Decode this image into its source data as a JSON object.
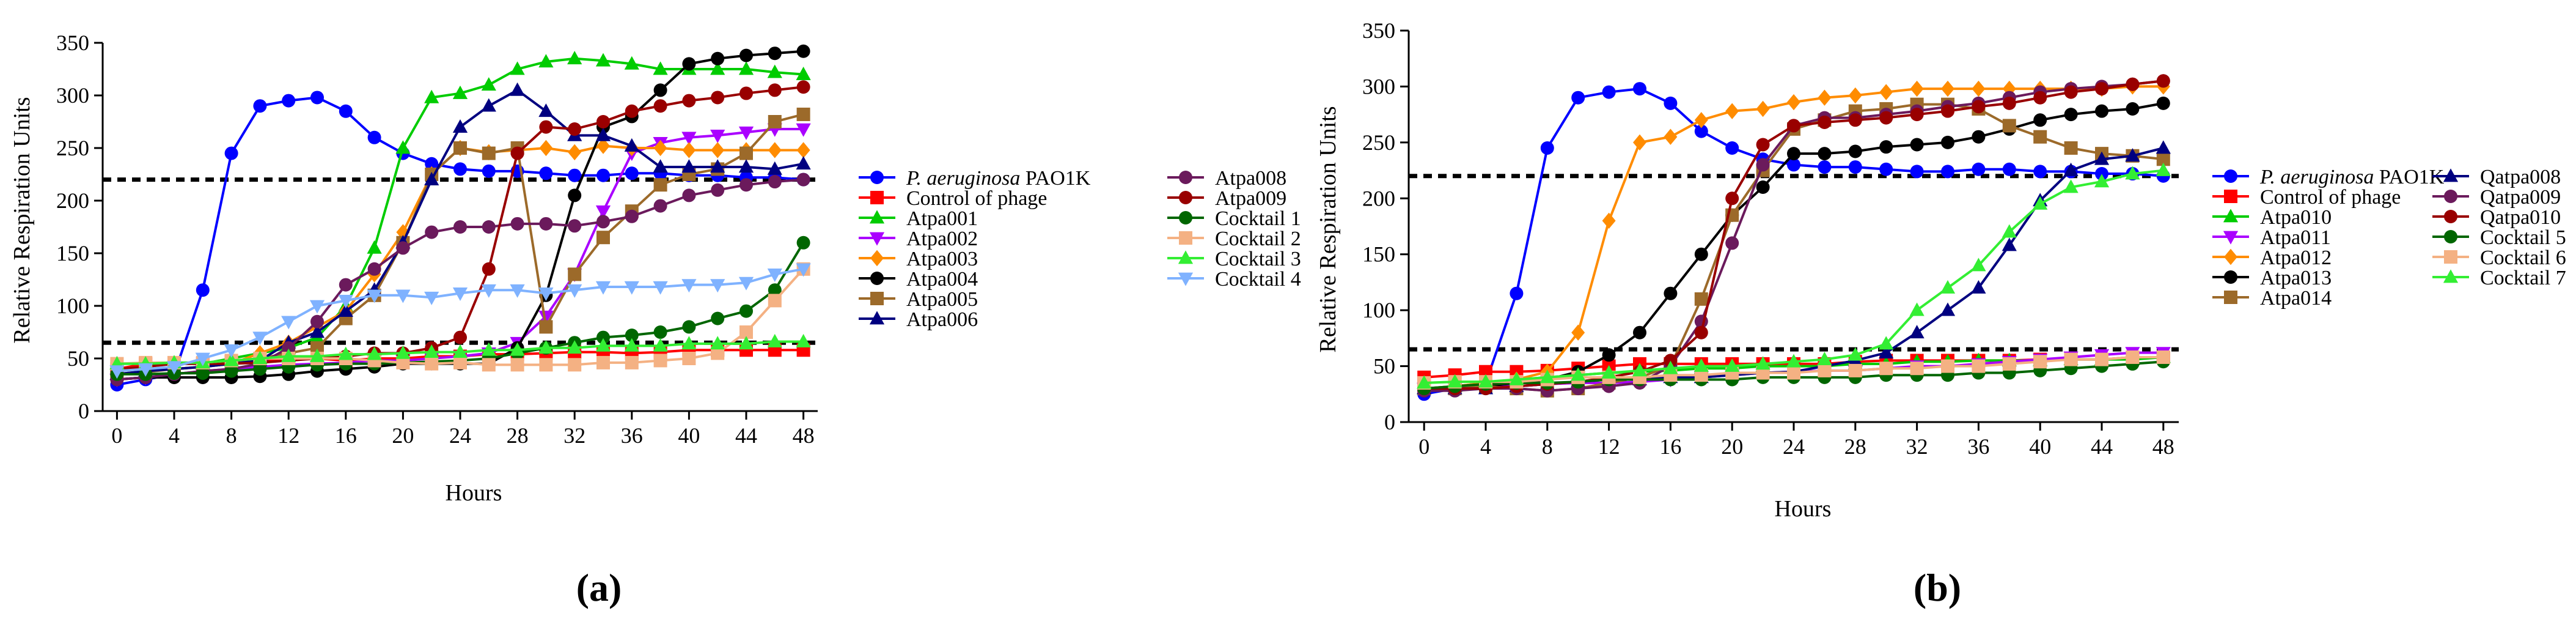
{
  "panels": [
    {
      "label": "(a)"
    },
    {
      "label": "(b)"
    }
  ],
  "chart_data": [
    {
      "type": "line",
      "title": "",
      "xlabel": "Hours",
      "ylabel": "Relative Respiration Units",
      "xlim": [
        -1,
        49
      ],
      "ylim": [
        0,
        350
      ],
      "xticks": [
        0,
        4,
        8,
        12,
        16,
        20,
        24,
        28,
        32,
        36,
        40,
        44,
        48
      ],
      "yticks": [
        0,
        50,
        100,
        150,
        200,
        250,
        300,
        350
      ],
      "reference_lines": [
        220,
        65
      ],
      "x": [
        0,
        2,
        4,
        6,
        8,
        10,
        12,
        14,
        16,
        18,
        20,
        22,
        24,
        26,
        28,
        30,
        32,
        34,
        36,
        38,
        40,
        42,
        44,
        46,
        48
      ],
      "series": [
        {
          "name": "P. aeruginosa PAO1K",
          "name_italic": "P. aeruginosa",
          "name_rest": " PAO1K",
          "color": "#0000ff",
          "marker": "circle",
          "values": [
            25,
            30,
            35,
            115,
            245,
            290,
            295,
            298,
            285,
            260,
            245,
            235,
            230,
            228,
            228,
            226,
            224,
            224,
            226,
            226,
            224,
            224,
            222,
            222,
            220
          ]
        },
        {
          "name": "Control of phage",
          "color": "#ff0000",
          "marker": "square",
          "values": [
            40,
            45,
            45,
            45,
            47,
            48,
            50,
            50,
            48,
            50,
            50,
            52,
            52,
            54,
            54,
            55,
            56,
            56,
            55,
            56,
            58,
            58,
            58,
            58,
            58
          ]
        },
        {
          "name": "Atpa001",
          "color": "#00cc00",
          "marker": "triangle",
          "values": [
            45,
            45,
            45,
            45,
            50,
            55,
            60,
            70,
            100,
            155,
            250,
            298,
            302,
            310,
            325,
            332,
            335,
            333,
            330,
            325,
            325,
            325,
            325,
            322,
            320
          ]
        },
        {
          "name": "Atpa002",
          "color": "#aa00ff",
          "marker": "triangle-down",
          "values": [
            30,
            32,
            35,
            38,
            40,
            42,
            44,
            45,
            46,
            48,
            48,
            50,
            52,
            55,
            65,
            90,
            130,
            190,
            245,
            255,
            260,
            262,
            265,
            268,
            268
          ]
        },
        {
          "name": "Atpa003",
          "color": "#ff8c00",
          "marker": "diamond",
          "values": [
            35,
            38,
            40,
            42,
            45,
            55,
            65,
            80,
            95,
            130,
            170,
            225,
            250,
            246,
            248,
            250,
            246,
            252,
            250,
            250,
            248,
            248,
            248,
            248,
            248
          ]
        },
        {
          "name": "Atpa004",
          "color": "#000000",
          "marker": "circle",
          "values": [
            30,
            32,
            32,
            32,
            32,
            33,
            35,
            38,
            40,
            42,
            45,
            45,
            45,
            45,
            60,
            110,
            205,
            270,
            280,
            305,
            330,
            335,
            338,
            340,
            342
          ]
        },
        {
          "name": "Atpa005",
          "color": "#9c6a2a",
          "marker": "square",
          "values": [
            35,
            37,
            40,
            42,
            45,
            50,
            55,
            60,
            88,
            110,
            160,
            225,
            250,
            245,
            250,
            80,
            130,
            165,
            190,
            215,
            225,
            230,
            245,
            275,
            282
          ]
        },
        {
          "name": "Atpa006",
          "color": "#000080",
          "marker": "triangle",
          "values": [
            35,
            38,
            40,
            42,
            45,
            48,
            65,
            75,
            95,
            115,
            160,
            220,
            270,
            290,
            305,
            285,
            262,
            262,
            252,
            232,
            232,
            232,
            232,
            230,
            235
          ]
        },
        {
          "name": "Atpa008",
          "color": "#6b1a5c",
          "marker": "circle",
          "values": [
            30,
            32,
            35,
            38,
            40,
            45,
            60,
            85,
            120,
            135,
            155,
            170,
            175,
            175,
            178,
            178,
            176,
            180,
            185,
            195,
            205,
            210,
            215,
            218,
            220
          ]
        },
        {
          "name": "Atpa009",
          "color": "#990000",
          "marker": "circle",
          "values": [
            40,
            42,
            45,
            45,
            45,
            46,
            48,
            50,
            52,
            55,
            55,
            60,
            70,
            135,
            245,
            270,
            268,
            275,
            285,
            290,
            295,
            298,
            302,
            305,
            308
          ]
        },
        {
          "name": "Cocktail 1",
          "color": "#006600",
          "marker": "circle",
          "values": [
            35,
            35,
            36,
            36,
            38,
            40,
            42,
            44,
            45,
            45,
            46,
            47,
            48,
            50,
            55,
            60,
            65,
            70,
            72,
            75,
            80,
            88,
            95,
            115,
            160
          ]
        },
        {
          "name": "Cocktail 2",
          "color": "#f4b183",
          "marker": "square",
          "values": [
            45,
            46,
            46,
            46,
            48,
            50,
            50,
            50,
            50,
            48,
            46,
            45,
            46,
            44,
            44,
            44,
            44,
            46,
            46,
            48,
            50,
            55,
            75,
            105,
            135
          ]
        },
        {
          "name": "Cocktail 3",
          "color": "#33ee33",
          "marker": "triangle",
          "values": [
            45,
            45,
            46,
            46,
            48,
            50,
            52,
            52,
            54,
            54,
            55,
            56,
            56,
            58,
            58,
            60,
            60,
            62,
            62,
            62,
            64,
            64,
            64,
            66,
            66
          ]
        },
        {
          "name": "Cocktail 4",
          "color": "#7fb2ff",
          "marker": "triangle-down",
          "values": [
            38,
            40,
            42,
            50,
            58,
            70,
            85,
            100,
            105,
            110,
            110,
            108,
            112,
            115,
            115,
            112,
            115,
            118,
            118,
            118,
            120,
            120,
            122,
            130,
            135
          ]
        }
      ]
    },
    {
      "type": "line",
      "title": "",
      "xlabel": "Hours",
      "ylabel": "Relative Respiration Units",
      "xlim": [
        -1,
        49
      ],
      "ylim": [
        0,
        350
      ],
      "xticks": [
        0,
        4,
        8,
        12,
        16,
        20,
        24,
        28,
        32,
        36,
        40,
        44,
        48
      ],
      "yticks": [
        0,
        50,
        100,
        150,
        200,
        250,
        300,
        350
      ],
      "reference_lines": [
        220,
        65
      ],
      "x": [
        0,
        2,
        4,
        6,
        8,
        10,
        12,
        14,
        16,
        18,
        20,
        22,
        24,
        26,
        28,
        30,
        32,
        34,
        36,
        38,
        40,
        42,
        44,
        46,
        48
      ],
      "series": [
        {
          "name": "P. aeruginosa PAO1K",
          "name_italic": "P. aeruginosa",
          "name_rest": " PAO1K",
          "color": "#0000ff",
          "marker": "circle",
          "values": [
            25,
            30,
            35,
            115,
            245,
            290,
            295,
            298,
            285,
            260,
            245,
            235,
            230,
            228,
            228,
            226,
            224,
            224,
            226,
            226,
            224,
            224,
            222,
            222,
            220
          ]
        },
        {
          "name": "Control of phage",
          "color": "#ff0000",
          "marker": "square",
          "values": [
            40,
            42,
            45,
            45,
            46,
            48,
            50,
            52,
            52,
            52,
            52,
            52,
            52,
            52,
            54,
            55,
            55,
            55,
            55,
            55,
            56,
            56,
            56,
            58,
            58
          ]
        },
        {
          "name": "Atpa010",
          "color": "#00cc00",
          "marker": "triangle",
          "values": [
            30,
            32,
            35,
            38,
            40,
            42,
            44,
            45,
            46,
            48,
            48,
            50,
            50,
            50,
            52,
            52,
            54,
            54,
            55,
            55,
            55,
            56,
            56,
            56,
            58
          ]
        },
        {
          "name": "Atpa011",
          "color": "#aa00ff",
          "marker": "triangle-down",
          "values": [
            30,
            30,
            32,
            32,
            34,
            35,
            35,
            36,
            38,
            40,
            42,
            44,
            45,
            46,
            46,
            48,
            50,
            50,
            52,
            54,
            56,
            58,
            60,
            62,
            62
          ]
        },
        {
          "name": "Atpa012",
          "color": "#ff8c00",
          "marker": "diamond",
          "values": [
            30,
            32,
            35,
            38,
            45,
            80,
            180,
            250,
            255,
            270,
            278,
            280,
            286,
            290,
            292,
            295,
            298,
            298,
            298,
            298,
            298,
            298,
            298,
            300,
            300
          ]
        },
        {
          "name": "Atpa013",
          "color": "#000000",
          "marker": "circle",
          "values": [
            28,
            30,
            32,
            35,
            38,
            45,
            60,
            80,
            115,
            150,
            185,
            210,
            240,
            240,
            242,
            246,
            248,
            250,
            255,
            262,
            270,
            275,
            278,
            280,
            285
          ]
        },
        {
          "name": "Atpa014",
          "color": "#9c6a2a",
          "marker": "square",
          "values": [
            30,
            30,
            32,
            30,
            28,
            30,
            35,
            40,
            50,
            110,
            185,
            225,
            262,
            270,
            278,
            280,
            284,
            284,
            280,
            265,
            255,
            245,
            240,
            238,
            235
          ]
        },
        {
          "name": "Qatpa008",
          "color": "#000080",
          "marker": "triangle",
          "values": [
            30,
            30,
            30,
            32,
            34,
            36,
            38,
            38,
            40,
            40,
            42,
            44,
            45,
            50,
            55,
            62,
            80,
            100,
            120,
            158,
            198,
            225,
            235,
            238,
            245
          ]
        },
        {
          "name": "Qatpa009",
          "color": "#6b1a5c",
          "marker": "circle",
          "values": [
            28,
            28,
            30,
            30,
            28,
            30,
            32,
            35,
            50,
            90,
            160,
            230,
            265,
            272,
            272,
            275,
            278,
            282,
            285,
            290,
            295,
            298,
            300,
            302,
            305
          ]
        },
        {
          "name": "Qatpa010",
          "color": "#990000",
          "marker": "circle",
          "values": [
            30,
            30,
            30,
            32,
            34,
            36,
            40,
            45,
            55,
            80,
            200,
            248,
            265,
            268,
            270,
            272,
            275,
            278,
            282,
            285,
            290,
            295,
            298,
            302,
            305
          ]
        },
        {
          "name": "Cocktail 5",
          "color": "#006600",
          "marker": "circle",
          "values": [
            30,
            32,
            34,
            35,
            35,
            36,
            38,
            38,
            38,
            38,
            38,
            40,
            40,
            40,
            40,
            42,
            42,
            42,
            44,
            44,
            46,
            48,
            50,
            52,
            54
          ]
        },
        {
          "name": "Cocktail 6",
          "color": "#f4b183",
          "marker": "square",
          "values": [
            35,
            36,
            36,
            36,
            38,
            40,
            40,
            40,
            42,
            42,
            44,
            44,
            44,
            46,
            46,
            48,
            48,
            50,
            50,
            52,
            54,
            56,
            56,
            58,
            58
          ]
        },
        {
          "name": "Cocktail 7",
          "color": "#33ee33",
          "marker": "triangle",
          "values": [
            35,
            36,
            36,
            38,
            40,
            42,
            44,
            46,
            48,
            50,
            50,
            52,
            54,
            56,
            60,
            70,
            100,
            120,
            140,
            170,
            195,
            210,
            215,
            222,
            225
          ]
        }
      ]
    }
  ]
}
